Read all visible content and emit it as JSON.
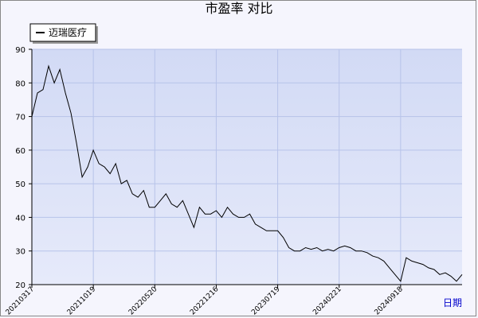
{
  "chart_data": {
    "type": "line",
    "title": "市盈率  对比",
    "x_label": "日期",
    "categories": [
      "20210317",
      null,
      null,
      null,
      null,
      null,
      null,
      null,
      null,
      null,
      null,
      "20211019",
      null,
      null,
      null,
      null,
      null,
      null,
      null,
      null,
      null,
      null,
      "20220520",
      null,
      null,
      null,
      null,
      null,
      null,
      null,
      null,
      null,
      null,
      "20221216",
      null,
      null,
      null,
      null,
      null,
      null,
      null,
      null,
      null,
      null,
      "20230719",
      null,
      null,
      null,
      null,
      null,
      null,
      null,
      null,
      null,
      null,
      "20240221",
      null,
      null,
      null,
      null,
      null,
      null,
      null,
      null,
      null,
      null,
      "20240918",
      null,
      null,
      null,
      null,
      null,
      null,
      null,
      null,
      null,
      null,
      null
    ],
    "series": [
      {
        "name": "迈瑞医疗",
        "color": "#000000",
        "values": [
          70,
          77,
          78,
          85,
          80,
          84,
          77,
          71,
          62,
          52,
          55,
          60,
          56,
          55,
          53,
          56,
          50,
          51,
          47,
          46,
          48,
          43,
          43,
          45,
          47,
          44,
          43,
          45,
          41,
          37,
          43,
          41,
          41,
          42,
          40,
          43,
          41,
          40,
          40,
          41,
          38,
          37,
          36,
          36,
          36,
          34,
          31,
          30,
          30,
          31,
          30.5,
          31,
          30,
          30.5,
          30,
          31,
          31.5,
          31,
          30,
          30,
          29.5,
          28.5,
          28,
          27,
          25,
          23,
          21,
          28,
          27,
          26.5,
          26,
          25,
          24.5,
          23,
          23.5,
          22.5,
          21,
          23
        ]
      }
    ],
    "ylim": [
      20,
      90
    ],
    "yticks": [
      20,
      30,
      40,
      50,
      60,
      70,
      80,
      90
    ],
    "grid": true,
    "legend": "top-left"
  }
}
